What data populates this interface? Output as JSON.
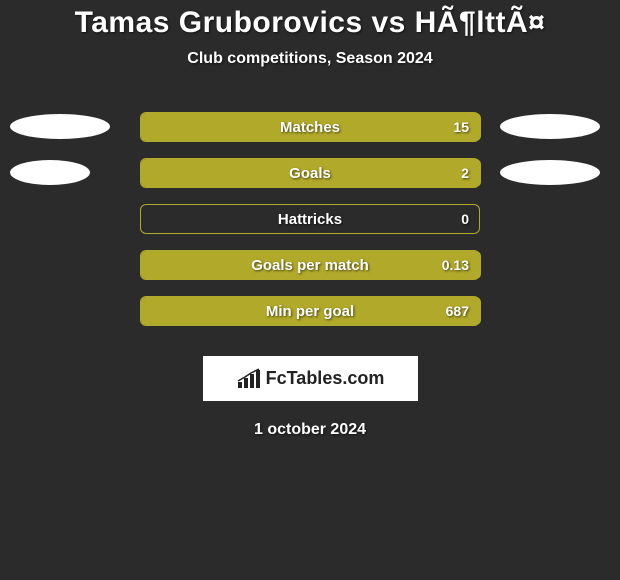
{
  "title": "Tamas Gruborovics vs HÃ¶lttÃ¤",
  "subtitle": "Club competitions, Season 2024",
  "date": "1 october 2024",
  "logo": {
    "text": "FcTables.com"
  },
  "colors": {
    "background": "#2b2b2b",
    "ellipse": "#ffffff",
    "bar_fill": "#b0a92a",
    "bar_border": "#b0a92a",
    "bar_empty_border": "#b0a92a",
    "text": "#ffffff",
    "logo_bg": "#ffffff",
    "logo_text": "#222222"
  },
  "rows": [
    {
      "label": "Matches",
      "value_text": "15",
      "left_ellipse_width": 100,
      "right_ellipse_width": 100,
      "fill_left": 0,
      "fill_width": 340
    },
    {
      "label": "Goals",
      "value_text": "2",
      "left_ellipse_width": 80,
      "right_ellipse_width": 100,
      "fill_left": 0,
      "fill_width": 340
    },
    {
      "label": "Hattricks",
      "value_text": "0",
      "left_ellipse_width": 0,
      "right_ellipse_width": 0,
      "fill_left": 0,
      "fill_width": 0
    },
    {
      "label": "Goals per match",
      "value_text": "0.13",
      "left_ellipse_width": 0,
      "right_ellipse_width": 0,
      "fill_left": 0,
      "fill_width": 340
    },
    {
      "label": "Min per goal",
      "value_text": "687",
      "left_ellipse_width": 0,
      "right_ellipse_width": 0,
      "fill_left": 0,
      "fill_width": 340
    }
  ]
}
